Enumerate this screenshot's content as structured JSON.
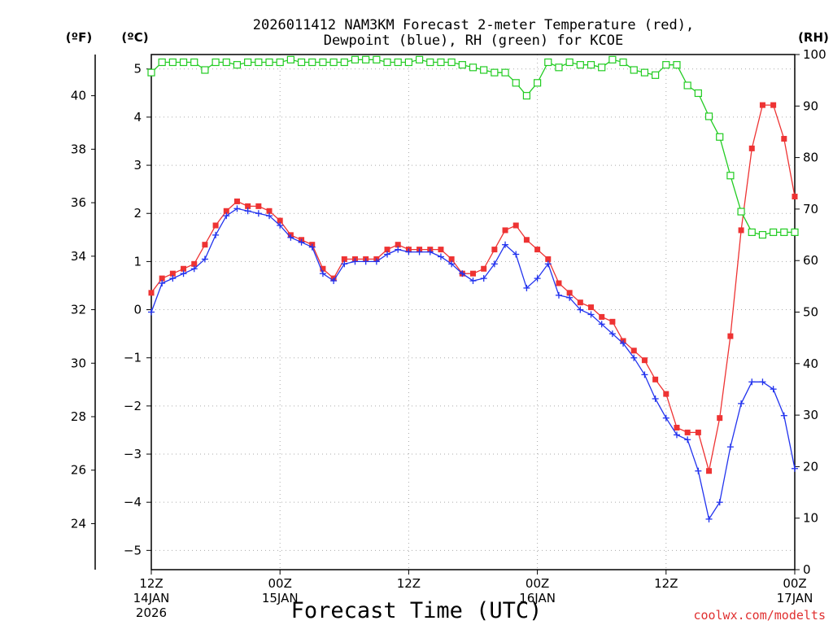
{
  "chart_data": {
    "type": "line",
    "title_line1": "2026011412 NAM3KM Forecast 2-meter Temperature (red),",
    "title_line2": "Dewpoint (blue), RH (green) for KCOE",
    "xlabel": "Forecast Time (UTC)",
    "credit": "coolwx.com/modelts",
    "unit_f": "(ºF)",
    "unit_c": "(ºC)",
    "unit_rh": "(RH)",
    "x_hours": [
      0,
      1,
      2,
      3,
      4,
      5,
      6,
      7,
      8,
      9,
      10,
      11,
      12,
      13,
      14,
      15,
      16,
      17,
      18,
      19,
      20,
      21,
      22,
      23,
      24,
      25,
      26,
      27,
      28,
      29,
      30,
      31,
      32,
      33,
      34,
      35,
      36,
      37,
      38,
      39,
      40,
      41,
      42,
      43,
      44,
      45,
      46,
      47,
      48,
      49,
      50,
      51,
      52,
      53,
      54,
      55,
      56,
      57,
      58,
      59,
      60
    ],
    "xlim": [
      0,
      60
    ],
    "x_ticks": [
      {
        "hour": 0,
        "lines": [
          "12Z",
          "14JAN",
          "2026"
        ]
      },
      {
        "hour": 12,
        "lines": [
          "00Z",
          "15JAN"
        ]
      },
      {
        "hour": 24,
        "lines": [
          "12Z"
        ]
      },
      {
        "hour": 36,
        "lines": [
          "00Z",
          "16JAN"
        ]
      },
      {
        "hour": 48,
        "lines": [
          "12Z"
        ]
      },
      {
        "hour": 60,
        "lines": [
          "00Z",
          "17JAN"
        ]
      }
    ],
    "celsius_axis": {
      "ylim": [
        -5.4,
        5.3
      ],
      "ticks": [
        -5,
        -4,
        -3,
        -2,
        -1,
        0,
        1,
        2,
        3,
        4,
        5
      ],
      "tick_labels": [
        "−5",
        "−4",
        "−3",
        "−2",
        "−1",
        "0",
        "1",
        "2",
        "3",
        "4",
        "5"
      ]
    },
    "fahrenheit_axis": {
      "ticks": [
        24,
        26,
        28,
        30,
        32,
        34,
        36,
        38,
        40
      ],
      "tick_labels": [
        "24",
        "26",
        "28",
        "30",
        "32",
        "34",
        "36",
        "38",
        "40"
      ]
    },
    "rh_axis": {
      "ylim": [
        0,
        100
      ],
      "ticks": [
        0,
        10,
        20,
        30,
        40,
        50,
        60,
        70,
        80,
        90,
        100
      ],
      "tick_labels": [
        "0",
        "10",
        "20",
        "30",
        "40",
        "50",
        "60",
        "70",
        "80",
        "90",
        "100"
      ]
    },
    "series": [
      {
        "name": "Temperature",
        "color": "#ee3333",
        "axis": "celsius",
        "marker": "filled-square",
        "values": [
          0.35,
          0.65,
          0.75,
          0.85,
          0.95,
          1.35,
          1.75,
          2.05,
          2.25,
          2.15,
          2.15,
          2.05,
          1.85,
          1.55,
          1.45,
          1.35,
          0.85,
          0.65,
          1.05,
          1.05,
          1.05,
          1.05,
          1.25,
          1.35,
          1.25,
          1.25,
          1.25,
          1.25,
          1.05,
          0.75,
          0.75,
          0.85,
          1.25,
          1.65,
          1.75,
          1.45,
          1.25,
          1.05,
          0.55,
          0.35,
          0.15,
          0.05,
          -0.15,
          -0.25,
          -0.65,
          -0.85,
          -1.05,
          -1.45,
          -1.75,
          -2.45,
          -2.55,
          -2.55,
          -3.35,
          -2.25,
          -0.55,
          1.65,
          3.35,
          4.25,
          4.25,
          3.55,
          2.35
        ]
      },
      {
        "name": "Dewpoint",
        "color": "#2233ee",
        "axis": "celsius",
        "marker": "plus",
        "values": [
          -0.05,
          0.55,
          0.65,
          0.75,
          0.85,
          1.05,
          1.55,
          1.95,
          2.1,
          2.05,
          2.0,
          1.95,
          1.75,
          1.5,
          1.4,
          1.3,
          0.75,
          0.6,
          0.95,
          1.0,
          1.0,
          1.0,
          1.15,
          1.25,
          1.2,
          1.2,
          1.2,
          1.1,
          0.95,
          0.75,
          0.6,
          0.65,
          0.95,
          1.35,
          1.15,
          0.45,
          0.65,
          0.95,
          0.3,
          0.25,
          0.0,
          -0.1,
          -0.3,
          -0.5,
          -0.7,
          -1.0,
          -1.35,
          -1.85,
          -2.25,
          -2.6,
          -2.7,
          -3.35,
          -4.35,
          -4.0,
          -2.85,
          -1.95,
          -1.5,
          -1.5,
          -1.65,
          -2.2,
          -3.3
        ]
      },
      {
        "name": "RH",
        "color": "#22cc22",
        "axis": "rh",
        "marker": "open-square",
        "values": [
          96.5,
          98.5,
          98.5,
          98.5,
          98.5,
          97,
          98.5,
          98.5,
          98,
          98.5,
          98.5,
          98.5,
          98.5,
          99,
          98.5,
          98.5,
          98.5,
          98.5,
          98.5,
          99,
          99,
          99,
          98.5,
          98.5,
          98.5,
          99,
          98.5,
          98.5,
          98.5,
          98,
          97.5,
          97,
          96.5,
          96.5,
          94.5,
          92,
          94.5,
          98.5,
          97.5,
          98.5,
          98,
          98,
          97.5,
          99,
          98.5,
          97,
          96.5,
          96,
          98,
          98,
          94,
          92.5,
          88,
          84,
          76.5,
          69.5,
          65.5,
          65,
          65.5,
          65.5,
          65.5
        ]
      }
    ]
  }
}
